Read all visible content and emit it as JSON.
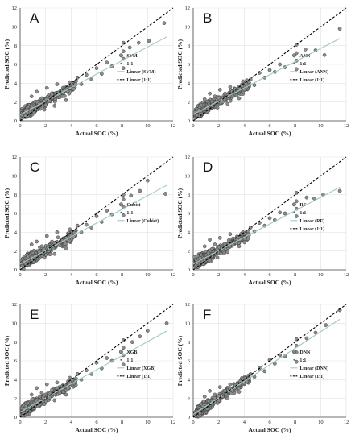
{
  "chart_data": [
    {
      "type": "scatter",
      "panel": "A",
      "xlabel": "Actual SOC (%)",
      "ylabel": "Predicted SOC (%)",
      "xlim": [
        0,
        12
      ],
      "ylim": [
        0,
        12
      ],
      "xticks": [
        "0",
        "2",
        "4",
        "6",
        "8",
        "10",
        "12"
      ],
      "yticks": [
        "0",
        "2",
        "4",
        "6",
        "8",
        "10",
        "12"
      ],
      "legend": {
        "placement": "lower-right",
        "entries": [
          "SVM",
          "1:1",
          "Linear (SVM)",
          "Linear (1:1)"
        ]
      },
      "fit": {
        "slope": 0.72,
        "intercept": 0.65
      },
      "points": [
        [
          0.3,
          0.8
        ],
        [
          0.6,
          1.5
        ],
        [
          0.9,
          2.6
        ],
        [
          1.1,
          0.9
        ],
        [
          1.3,
          3.1
        ],
        [
          1.5,
          1.8
        ],
        [
          1.7,
          2.4
        ],
        [
          1.9,
          1.2
        ],
        [
          2.1,
          3.5
        ],
        [
          2.3,
          2.1
        ],
        [
          2.5,
          2.8
        ],
        [
          2.7,
          1.6
        ],
        [
          2.9,
          3.9
        ],
        [
          3.1,
          2.5
        ],
        [
          3.3,
          3.2
        ],
        [
          3.6,
          2.2
        ],
        [
          3.9,
          4.1
        ],
        [
          4.2,
          3.4
        ],
        [
          4.5,
          4.6
        ],
        [
          4.8,
          3.9
        ],
        [
          5.2,
          4.9
        ],
        [
          5.6,
          4.4
        ],
        [
          6.0,
          5.6
        ],
        [
          6.4,
          5.0
        ],
        [
          6.8,
          6.2
        ],
        [
          7.2,
          5.8
        ],
        [
          8.1,
          5.6
        ],
        [
          8.1,
          6.6
        ],
        [
          8.1,
          7.4
        ],
        [
          8.1,
          8.3
        ],
        [
          8.6,
          7.8
        ],
        [
          9.3,
          8.3
        ],
        [
          10.1,
          8.5
        ],
        [
          11.3,
          10.4
        ]
      ]
    },
    {
      "type": "scatter",
      "panel": "B",
      "xlabel": "Actual SOC (%)",
      "ylabel": "Predicted SOC (%)",
      "xlim": [
        0,
        12
      ],
      "ylim": [
        0,
        12
      ],
      "xticks": [
        "0",
        "2",
        "4",
        "6",
        "8",
        "10",
        "12"
      ],
      "yticks": [
        "0",
        "2",
        "4",
        "6",
        "8",
        "10",
        "12"
      ],
      "legend": {
        "placement": "lower-right",
        "entries": [
          "ANN",
          "1:1",
          "Linear (ANN)",
          "Linear (1:1)"
        ]
      },
      "fit": {
        "slope": 0.7,
        "intercept": 0.7
      },
      "points": [
        [
          0.3,
          0.6
        ],
        [
          0.6,
          1.7
        ],
        [
          0.9,
          2.3
        ],
        [
          1.1,
          1.0
        ],
        [
          1.3,
          2.9
        ],
        [
          1.5,
          1.6
        ],
        [
          1.7,
          2.6
        ],
        [
          1.9,
          1.4
        ],
        [
          2.1,
          3.3
        ],
        [
          2.3,
          2.0
        ],
        [
          2.5,
          2.9
        ],
        [
          2.7,
          1.8
        ],
        [
          2.9,
          3.6
        ],
        [
          3.1,
          2.6
        ],
        [
          3.3,
          3.4
        ],
        [
          3.6,
          2.4
        ],
        [
          3.9,
          4.2
        ],
        [
          4.2,
          3.6
        ],
        [
          4.5,
          4.4
        ],
        [
          4.8,
          3.8
        ],
        [
          5.2,
          5.1
        ],
        [
          5.6,
          4.6
        ],
        [
          6.0,
          5.4
        ],
        [
          6.4,
          5.2
        ],
        [
          6.8,
          6.0
        ],
        [
          7.2,
          5.7
        ],
        [
          8.1,
          5.5
        ],
        [
          8.1,
          6.4
        ],
        [
          8.1,
          7.2
        ],
        [
          8.1,
          8.1
        ],
        [
          8.8,
          7.6
        ],
        [
          9.6,
          7.5
        ],
        [
          10.3,
          7.0
        ],
        [
          11.5,
          9.8
        ]
      ]
    },
    {
      "type": "scatter",
      "panel": "C",
      "xlabel": "Actual SOC (%)",
      "ylabel": "Predicted SOC (%)",
      "xlim": [
        0,
        12
      ],
      "ylim": [
        0,
        12
      ],
      "xticks": [
        "0",
        "2",
        "4",
        "6",
        "8",
        "10",
        "12"
      ],
      "yticks": [
        "0",
        "2",
        "4",
        "6",
        "8",
        "10",
        "12"
      ],
      "legend": {
        "placement": "lower-right",
        "entries": [
          "Cubist",
          "1:1",
          "Linear (Cubist)"
        ]
      },
      "fit": {
        "slope": 0.73,
        "intercept": 0.6
      },
      "points": [
        [
          0.3,
          0.9
        ],
        [
          0.6,
          1.4
        ],
        [
          0.9,
          2.7
        ],
        [
          1.1,
          0.8
        ],
        [
          1.3,
          3.0
        ],
        [
          1.5,
          1.9
        ],
        [
          1.7,
          2.5
        ],
        [
          1.9,
          1.3
        ],
        [
          2.1,
          3.6
        ],
        [
          2.3,
          2.2
        ],
        [
          2.5,
          3.0
        ],
        [
          2.7,
          1.7
        ],
        [
          2.9,
          4.0
        ],
        [
          3.1,
          2.6
        ],
        [
          3.3,
          3.1
        ],
        [
          3.6,
          2.3
        ],
        [
          3.9,
          4.3
        ],
        [
          4.2,
          3.5
        ],
        [
          4.5,
          4.7
        ],
        [
          4.8,
          4.0
        ],
        [
          5.2,
          4.8
        ],
        [
          5.6,
          4.5
        ],
        [
          6.0,
          5.7
        ],
        [
          6.4,
          5.1
        ],
        [
          6.8,
          6.3
        ],
        [
          7.2,
          5.9
        ],
        [
          8.1,
          5.8
        ],
        [
          8.1,
          6.7
        ],
        [
          8.1,
          7.5
        ],
        [
          8.1,
          8.0
        ],
        [
          8.7,
          7.9
        ],
        [
          9.4,
          8.4
        ],
        [
          10.0,
          9.5
        ],
        [
          11.4,
          8.1
        ]
      ]
    },
    {
      "type": "scatter",
      "panel": "D",
      "xlabel": "Actual SOC (%)",
      "ylabel": "Predicted SOC (%)",
      "xlim": [
        0,
        12
      ],
      "ylim": [
        0,
        12
      ],
      "xticks": [
        "0",
        "2",
        "4",
        "6",
        "8",
        "10",
        "12"
      ],
      "yticks": [
        "0",
        "2",
        "4",
        "6",
        "8",
        "10",
        "12"
      ],
      "legend": {
        "placement": "lower-right",
        "entries": [
          "RF",
          "1:1",
          "Linear (RF)",
          "Linear (1:1)"
        ]
      },
      "fit": {
        "slope": 0.71,
        "intercept": 0.62
      },
      "points": [
        [
          0.3,
          0.7
        ],
        [
          0.6,
          1.6
        ],
        [
          0.9,
          2.5
        ],
        [
          1.1,
          1.1
        ],
        [
          1.3,
          3.2
        ],
        [
          1.5,
          1.7
        ],
        [
          1.7,
          2.7
        ],
        [
          1.9,
          1.3
        ],
        [
          2.1,
          3.4
        ],
        [
          2.3,
          2.3
        ],
        [
          2.5,
          2.7
        ],
        [
          2.7,
          1.9
        ],
        [
          2.9,
          3.8
        ],
        [
          3.1,
          2.7
        ],
        [
          3.3,
          3.3
        ],
        [
          3.6,
          2.5
        ],
        [
          3.9,
          4.0
        ],
        [
          4.2,
          3.7
        ],
        [
          4.5,
          4.5
        ],
        [
          4.8,
          4.1
        ],
        [
          5.2,
          5.0
        ],
        [
          5.6,
          4.7
        ],
        [
          6.0,
          5.5
        ],
        [
          6.4,
          5.3
        ],
        [
          6.8,
          6.1
        ],
        [
          7.2,
          6.0
        ],
        [
          8.1,
          5.7
        ],
        [
          8.1,
          6.5
        ],
        [
          8.1,
          7.3
        ],
        [
          8.1,
          8.2
        ],
        [
          8.9,
          7.7
        ],
        [
          9.5,
          7.6
        ],
        [
          10.2,
          8.0
        ],
        [
          11.5,
          8.4
        ]
      ]
    },
    {
      "type": "scatter",
      "panel": "E",
      "xlabel": "Actual SOC (%)",
      "ylabel": "Predicted SOC (%)",
      "xlim": [
        0,
        12
      ],
      "ylim": [
        0,
        12
      ],
      "xticks": [
        "0",
        "2",
        "4",
        "6",
        "8",
        "10",
        "12"
      ],
      "yticks": [
        "0",
        "2",
        "4",
        "6",
        "8",
        "10",
        "12"
      ],
      "legend": {
        "placement": "lower-right",
        "entries": [
          "XGB",
          "1:1",
          "Linear (XGB)",
          "Linear (1:1)"
        ]
      },
      "fit": {
        "slope": 0.75,
        "intercept": 0.55
      },
      "points": [
        [
          0.3,
          0.8
        ],
        [
          0.6,
          1.5
        ],
        [
          0.9,
          2.4
        ],
        [
          1.1,
          1.0
        ],
        [
          1.3,
          3.1
        ],
        [
          1.5,
          1.8
        ],
        [
          1.7,
          2.6
        ],
        [
          1.9,
          1.4
        ],
        [
          2.1,
          3.5
        ],
        [
          2.3,
          2.1
        ],
        [
          2.5,
          2.9
        ],
        [
          2.7,
          1.8
        ],
        [
          2.9,
          3.7
        ],
        [
          3.1,
          2.6
        ],
        [
          3.3,
          3.3
        ],
        [
          3.6,
          2.4
        ],
        [
          3.9,
          4.2
        ],
        [
          4.2,
          3.6
        ],
        [
          4.5,
          4.6
        ],
        [
          4.8,
          4.0
        ],
        [
          5.2,
          5.0
        ],
        [
          5.6,
          4.6
        ],
        [
          6.0,
          5.8
        ],
        [
          6.4,
          5.2
        ],
        [
          6.8,
          6.3
        ],
        [
          7.2,
          6.0
        ],
        [
          8.1,
          5.6
        ],
        [
          8.1,
          6.6
        ],
        [
          8.1,
          7.4
        ],
        [
          8.1,
          8.2
        ],
        [
          8.8,
          8.0
        ],
        [
          9.4,
          8.6
        ],
        [
          10.0,
          9.2
        ],
        [
          11.5,
          10.0
        ]
      ]
    },
    {
      "type": "scatter",
      "panel": "F",
      "xlabel": "Actual SOC (%)",
      "ylabel": "Predicted SOC (%)",
      "xlim": [
        0,
        12
      ],
      "ylim": [
        0,
        12
      ],
      "xticks": [
        "0",
        "2",
        "4",
        "6",
        "8",
        "10",
        "12"
      ],
      "yticks": [
        "0",
        "2",
        "4",
        "6",
        "8",
        "10",
        "12"
      ],
      "legend": {
        "placement": "lower-right",
        "entries": [
          "DNN",
          "1:1",
          "Linear (DNN)",
          "Linear (1:1)"
        ]
      },
      "fit": {
        "slope": 0.88,
        "intercept": 0.3
      },
      "points": [
        [
          0.3,
          0.6
        ],
        [
          0.6,
          1.4
        ],
        [
          0.9,
          2.2
        ],
        [
          1.1,
          0.9
        ],
        [
          1.3,
          2.8
        ],
        [
          1.5,
          1.7
        ],
        [
          1.7,
          2.4
        ],
        [
          1.9,
          1.5
        ],
        [
          2.1,
          3.2
        ],
        [
          2.3,
          2.2
        ],
        [
          2.5,
          2.8
        ],
        [
          2.7,
          2.0
        ],
        [
          2.9,
          3.5
        ],
        [
          3.1,
          2.8
        ],
        [
          3.3,
          3.4
        ],
        [
          3.6,
          2.7
        ],
        [
          3.9,
          4.1
        ],
        [
          4.2,
          3.8
        ],
        [
          4.5,
          4.6
        ],
        [
          4.8,
          4.3
        ],
        [
          5.2,
          5.2
        ],
        [
          5.6,
          4.9
        ],
        [
          6.0,
          6.1
        ],
        [
          6.4,
          5.7
        ],
        [
          6.8,
          6.6
        ],
        [
          7.2,
          6.5
        ],
        [
          8.1,
          5.9
        ],
        [
          8.1,
          6.9
        ],
        [
          8.1,
          7.6
        ],
        [
          8.1,
          8.3
        ],
        [
          8.9,
          8.4
        ],
        [
          9.6,
          9.0
        ],
        [
          10.4,
          9.8
        ],
        [
          11.5,
          11.4
        ]
      ]
    }
  ],
  "style": {
    "marker_fill": "#8c8c8c",
    "marker_stroke": "#333333",
    "fit_color": "#9ec9c5",
    "one_to_one_color": "#000000",
    "grid_color": "#e2e2e2"
  }
}
